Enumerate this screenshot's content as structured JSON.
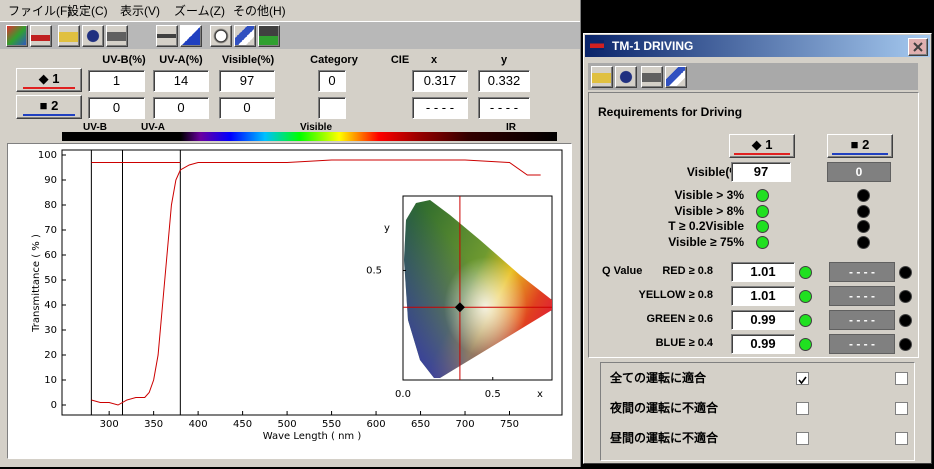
{
  "menu": [
    "ファイル(F)",
    "設定(C)",
    "表示(V)",
    "ズーム(Z)",
    "その他(H)"
  ],
  "table": {
    "headers": [
      "UV-B(%)",
      "UV-A(%)",
      "Visible(%)",
      "Category",
      "CIE",
      "x",
      "y"
    ],
    "rows": [
      {
        "button": "◆ 1",
        "cells": [
          "1",
          "14",
          "97",
          "0",
          "0.317",
          "0.332"
        ]
      },
      {
        "button": "■ 2",
        "cells": [
          "0",
          "0",
          "0",
          null,
          "- - - -",
          "- - - -"
        ]
      }
    ]
  },
  "spectrum_bar": [
    "UV-B",
    "UV-A",
    "Visible",
    "IR"
  ],
  "chart_data": [
    {
      "type": "line",
      "xlabel": "Wave Length ( nm )",
      "ylabel": "Transmittance ( % )",
      "x": [
        280,
        290,
        300,
        310,
        320,
        330,
        340,
        345,
        350,
        355,
        360,
        365,
        370,
        375,
        380,
        390,
        400,
        450,
        500,
        550,
        600,
        650,
        700,
        750,
        770,
        785
      ],
      "values": [
        2,
        1,
        1,
        0,
        2,
        3,
        3,
        5,
        10,
        20,
        40,
        60,
        80,
        90,
        94,
        96,
        97,
        97,
        97,
        98,
        98,
        98,
        98,
        97,
        92,
        92
      ],
      "color": "#cc0000",
      "xlim": [
        247,
        809
      ],
      "ylim": [
        -4,
        102
      ],
      "xticks": [
        300,
        350,
        400,
        450,
        500,
        550,
        600,
        650,
        700,
        750
      ],
      "yticks": [
        0,
        10,
        20,
        30,
        40,
        50,
        60,
        70,
        80,
        90,
        100
      ],
      "vlines": [
        280,
        315,
        380
      ],
      "hline": 97
    },
    {
      "type": "scatter",
      "xlabel": "x",
      "ylabel": "y",
      "x": [
        0.317
      ],
      "values": [
        0.332
      ],
      "color": "#cc0000",
      "xlim": [
        0,
        0.83
      ],
      "ylim": [
        0,
        0.84
      ],
      "xticks": [
        {
          "value": 0,
          "label": "0.0"
        },
        0.5
      ],
      "yticks": [
        0.5
      ]
    }
  ],
  "driving_window": {
    "title": "TM-1 DRIVING",
    "heading": "Requirements for Driving",
    "buttons": [
      "◆ 1",
      "■ 2"
    ],
    "visible_label": "Visible(%)",
    "visible_values": [
      "97",
      "0"
    ],
    "criteria": [
      {
        "label": "Visible > 3%",
        "pass": [
          true,
          false
        ]
      },
      {
        "label": "Visible > 8%",
        "pass": [
          true,
          false
        ]
      },
      {
        "label": "T ≥ 0.2Visible",
        "pass": [
          true,
          false
        ]
      },
      {
        "label": "Visible ≥ 75%",
        "pass": [
          true,
          false
        ]
      }
    ],
    "q_label": "Q Value",
    "q_rows": [
      {
        "label": "RED ≥ 0.8",
        "values": [
          "1.01",
          "- - - -"
        ],
        "pass": [
          true,
          false
        ]
      },
      {
        "label": "YELLOW ≥ 0.8",
        "values": [
          "1.01",
          "- - - -"
        ],
        "pass": [
          true,
          false
        ]
      },
      {
        "label": "GREEN ≥ 0.6",
        "values": [
          "0.99",
          "- - - -"
        ],
        "pass": [
          true,
          false
        ]
      },
      {
        "label": "BLUE ≥ 0.4",
        "values": [
          "0.99",
          "- - - -"
        ],
        "pass": [
          true,
          false
        ]
      }
    ],
    "checks": [
      {
        "label": "全ての運転に適合",
        "checked": [
          true,
          false
        ]
      },
      {
        "label": "夜間の運転に不適合",
        "checked": [
          false,
          false
        ]
      },
      {
        "label": "昼間の運転に不適合",
        "checked": [
          false,
          false
        ]
      }
    ]
  }
}
